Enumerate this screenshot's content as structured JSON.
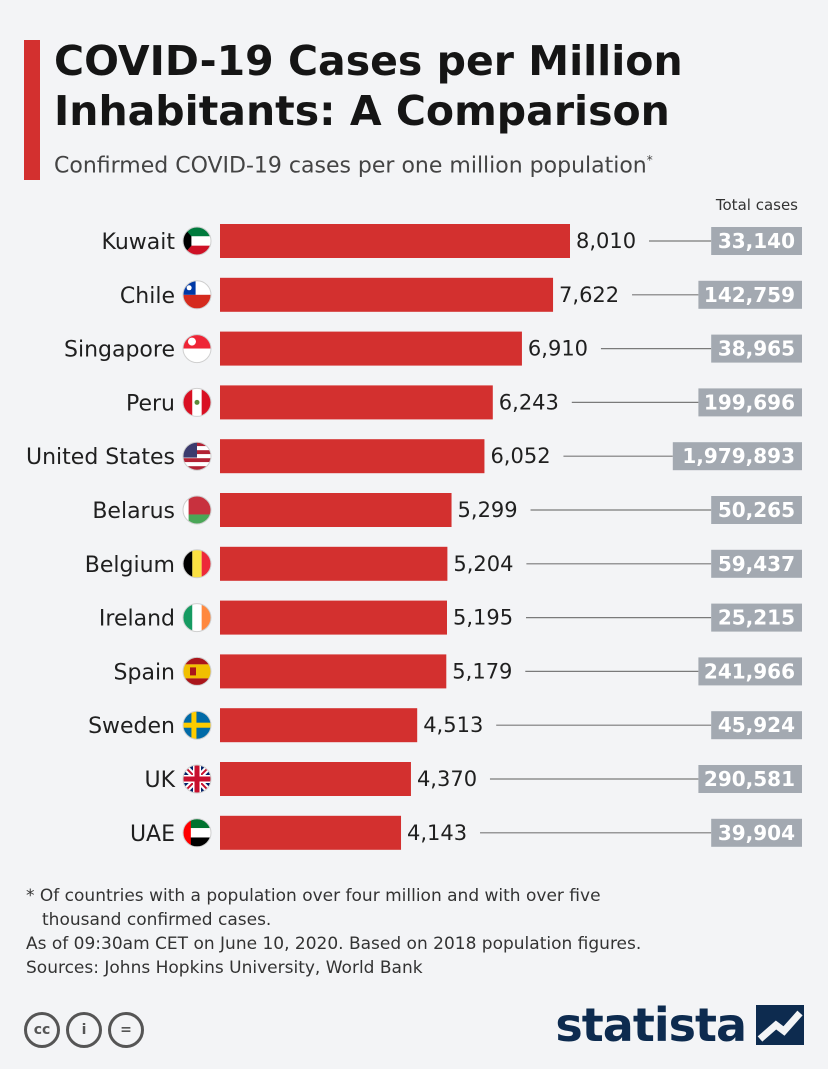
{
  "header": {
    "title_line1": "COVID-19 Cases per Million",
    "title_line2": "Inhabitants: A Comparison",
    "subtitle": "Confirmed COVID-19 cases per one million population",
    "subtitle_marker": "*",
    "total_header": "Total cases"
  },
  "colors": {
    "accent": "#d3302f",
    "bar": "#d3302f",
    "total_box": "#a3a9b1",
    "connector": "#7a7a7a",
    "brand": "#0d2b4f"
  },
  "chart_data": {
    "type": "bar",
    "orientation": "horizontal",
    "title": "COVID-19 Cases per Million Inhabitants: A Comparison",
    "subtitle": "Confirmed COVID-19 cases per one million population",
    "categories": [
      "Kuwait",
      "Chile",
      "Singapore",
      "Peru",
      "United States",
      "Belarus",
      "Belgium",
      "Ireland",
      "Spain",
      "Sweden",
      "UK",
      "UAE"
    ],
    "series": [
      {
        "name": "",
        "values": [
          8010,
          7622,
          6910,
          6243,
          6052,
          5299,
          5204,
          5195,
          5179,
          4513,
          4370,
          4143
        ]
      }
    ],
    "value_labels": [
      "8,010",
      "7,622",
      "6,910",
      "6,243",
      "6,052",
      "5,299",
      "5,204",
      "5,195",
      "5,179",
      "4,513",
      "4,370",
      "4,143"
    ],
    "total_cases": [
      "33,140",
      "142,759",
      "38,965",
      "199,696",
      "1,979,893",
      "50,265",
      "59,437",
      "25,215",
      "241,966",
      "45,924",
      "290,581",
      "39,904"
    ],
    "flags": [
      "kuwait",
      "chile",
      "singapore",
      "peru",
      "united-states",
      "belarus",
      "belgium",
      "ireland",
      "spain",
      "sweden",
      "uk",
      "uae"
    ],
    "xlim": [
      0,
      8010
    ],
    "grid": false,
    "legend": "none"
  },
  "footnote": {
    "line1": "* Of countries with a population over four million and with over five",
    "line2": "thousand confirmed cases.",
    "line3": "As of 09:30am CET on June 10, 2020. Based on 2018 population figures.",
    "line4": "Sources: Johns Hopkins University, World Bank"
  },
  "license_icons": [
    "cc-icon",
    "attribution-icon",
    "no-derivatives-icon"
  ],
  "license_glyphs": {
    "cc": "cc",
    "by": "i",
    "nd": "="
  },
  "brand": {
    "name": "statista",
    "icon": "statista-logo-icon"
  }
}
